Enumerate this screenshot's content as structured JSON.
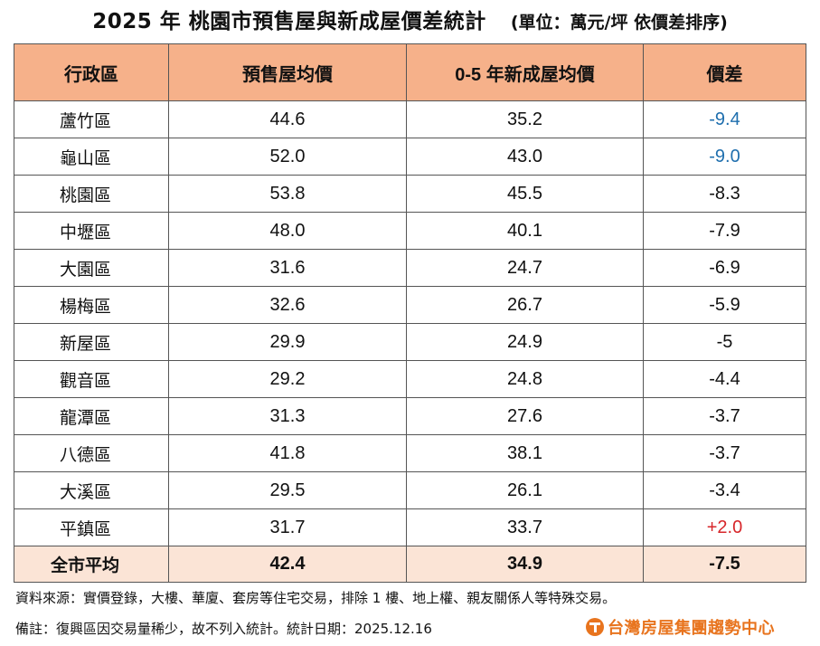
{
  "title": {
    "main": "2025 年  桃園市預售屋與新成屋價差統計",
    "unit": "(單位：萬元/坪  依價差排序)"
  },
  "table": {
    "headers": [
      "行政區",
      "預售屋均價",
      "0-5 年新成屋均價",
      "價差"
    ],
    "rows": [
      {
        "district": "蘆竹區",
        "presale": "44.6",
        "new_build": "35.2",
        "diff": "-9.4"
      },
      {
        "district": "龜山區",
        "presale": "52.0",
        "new_build": "43.0",
        "diff": "-9.0"
      },
      {
        "district": "桃園區",
        "presale": "53.8",
        "new_build": "45.5",
        "diff": "-8.3"
      },
      {
        "district": "中壢區",
        "presale": "48.0",
        "new_build": "40.1",
        "diff": "-7.9"
      },
      {
        "district": "大園區",
        "presale": "31.6",
        "new_build": "24.7",
        "diff": "-6.9"
      },
      {
        "district": "楊梅區",
        "presale": "32.6",
        "new_build": "26.7",
        "diff": "-5.9"
      },
      {
        "district": "新屋區",
        "presale": "29.9",
        "new_build": "24.9",
        "diff": "-5"
      },
      {
        "district": "觀音區",
        "presale": "29.2",
        "new_build": "24.8",
        "diff": "-4.4"
      },
      {
        "district": "龍潭區",
        "presale": "31.3",
        "new_build": "27.6",
        "diff": "-3.7"
      },
      {
        "district": "八德區",
        "presale": "41.8",
        "new_build": "38.1",
        "diff": "-3.7"
      },
      {
        "district": "大溪區",
        "presale": "29.5",
        "new_build": "26.1",
        "diff": "-3.4"
      },
      {
        "district": "平鎮區",
        "presale": "31.7",
        "new_build": "33.7",
        "diff": "+2.0"
      }
    ],
    "total": {
      "district": "全市平均",
      "presale": "42.4",
      "new_build": "34.9",
      "diff": "-7.5"
    }
  },
  "colors": {
    "header_bg": "#f6b18a",
    "total_bg": "#fbe4d6",
    "highlight_negative": "#1f6fae",
    "highlight_positive": "#d7262a",
    "brand_orange": "#e8741e"
  },
  "notes": {
    "source": "資料來源：實價登錄，大樓、華廈、套房等住宅交易，排除 1 樓、地上權、親友關係人等特殊交易。",
    "remark": "備註：復興區因交易量稀少，故不列入統計。統計日期：2025.12.16"
  },
  "logo": {
    "text": "台灣房屋集團趨勢中心",
    "icon": "taiwan-realty-logo-icon"
  }
}
